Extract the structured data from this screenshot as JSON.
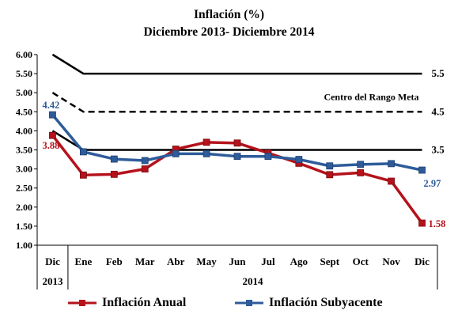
{
  "chart_data": {
    "type": "line",
    "title": "Inflación (%)",
    "subtitle": "Diciembre 2013- Diciembre 2014",
    "categories": [
      "Dic",
      "Ene",
      "Feb",
      "Mar",
      "Abr",
      "May",
      "Jun",
      "Jul",
      "Ago",
      "Sept",
      "Oct",
      "Nov",
      "Dic"
    ],
    "year_labels": [
      "2013",
      "2014"
    ],
    "ylim": [
      1.0,
      6.0
    ],
    "yticks": [
      "1.00",
      "1.50",
      "2.00",
      "2.50",
      "3.00",
      "3.50",
      "4.00",
      "4.50",
      "5.00",
      "5.50",
      "6.00"
    ],
    "series": [
      {
        "name": "Inflación Anual",
        "color": "#b5121b",
        "marker": "square",
        "values": [
          3.88,
          2.84,
          2.86,
          3.0,
          3.52,
          3.7,
          3.68,
          3.42,
          3.15,
          2.85,
          2.9,
          2.68,
          1.58
        ]
      },
      {
        "name": "Inflación Subyacente",
        "color": "#2e5c9a",
        "marker": "square",
        "values": [
          4.42,
          3.45,
          3.26,
          3.22,
          3.4,
          3.4,
          3.33,
          3.33,
          3.25,
          3.08,
          3.12,
          3.14,
          2.97
        ]
      }
    ],
    "target_range": {
      "upper_values": [
        6.0,
        5.5,
        5.5,
        5.5,
        5.5,
        5.5,
        5.5,
        5.5,
        5.5,
        5.5,
        5.5,
        5.5,
        5.5
      ],
      "center_values": [
        5.0,
        4.5,
        4.5,
        4.5,
        4.5,
        4.5,
        4.5,
        4.5,
        4.5,
        4.5,
        4.5,
        4.5,
        4.5
      ],
      "lower_values": [
        4.0,
        3.5,
        3.5,
        3.5,
        3.5,
        3.5,
        3.5,
        3.5,
        3.5,
        3.5,
        3.5,
        3.5,
        3.5
      ],
      "upper_label": "5.5",
      "center_label": "4.5",
      "lower_label": "3.5",
      "center_text": "Centro del Rango Meta"
    },
    "data_labels": {
      "anual_start": "3.88",
      "anual_end": "1.58",
      "subyacente_start": "4.42",
      "subyacente_end": "2.97"
    },
    "grid": false,
    "legend_position": "bottom"
  }
}
